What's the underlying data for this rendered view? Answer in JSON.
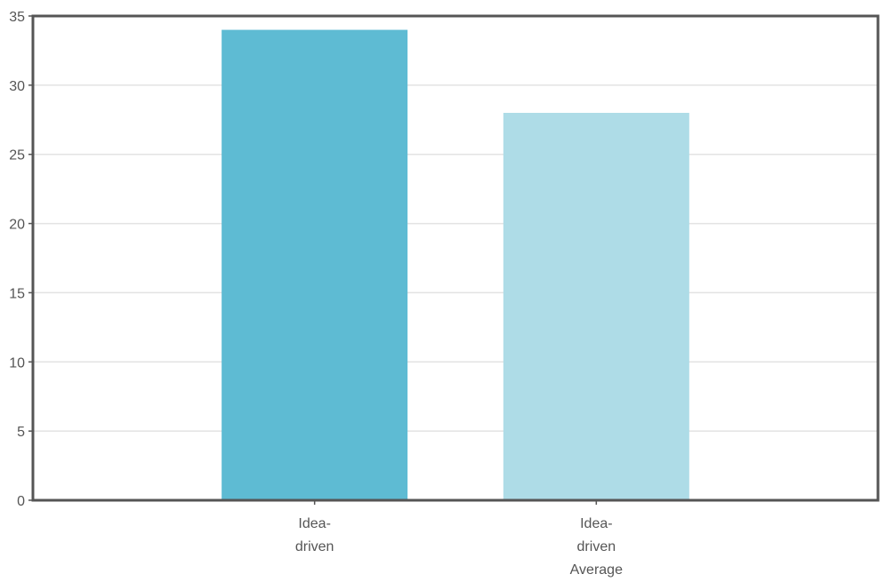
{
  "chart_data": {
    "type": "bar",
    "categories": [
      [
        "Idea-",
        "driven"
      ],
      [
        "Idea-",
        "driven",
        "Average"
      ]
    ],
    "values": [
      34,
      28
    ],
    "colors": [
      "#5ebbd3",
      "#aedce7"
    ],
    "ylim": [
      0,
      35
    ],
    "yticks": [
      "0",
      "5",
      "10",
      "15",
      "20",
      "25",
      "30",
      "35"
    ],
    "grid": true,
    "legend": "none",
    "title": "",
    "xlabel": "",
    "ylabel": ""
  }
}
